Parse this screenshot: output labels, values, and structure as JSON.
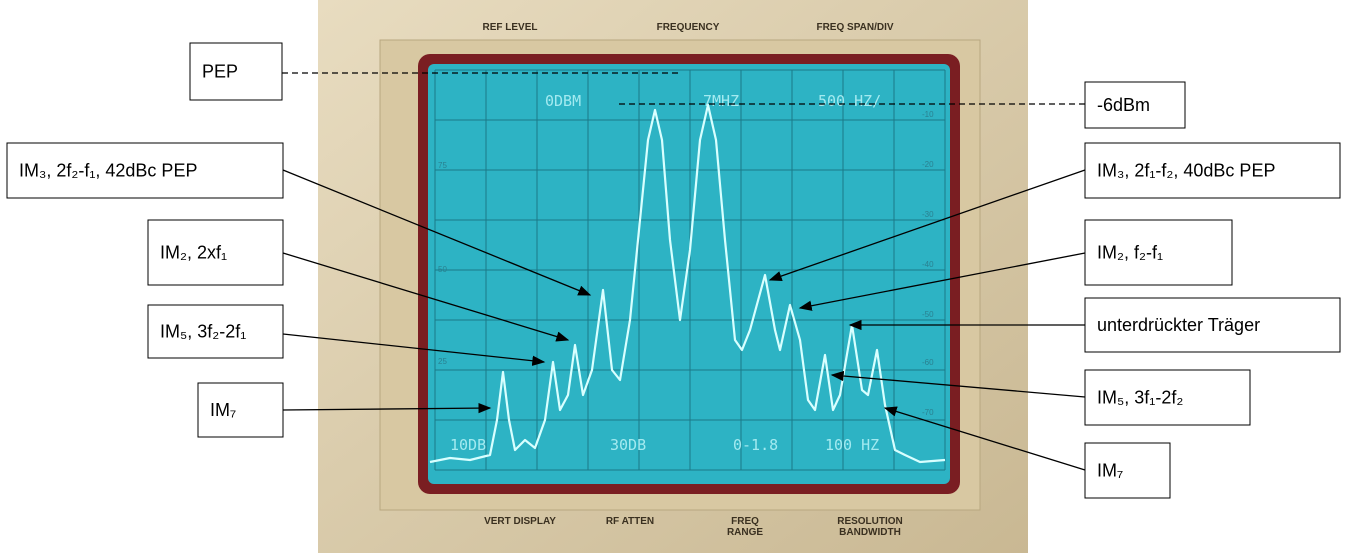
{
  "instrument": {
    "top_labels": [
      "REF LEVEL",
      "FREQUENCY",
      "FREQ SPAN/DIV"
    ],
    "bottom_labels": [
      [
        "VERT DISPLAY"
      ],
      [
        "RF ATTEN"
      ],
      [
        "FREQ",
        "RANGE"
      ],
      [
        "RESOLUTION",
        "BANDWIDTH"
      ]
    ],
    "screen_text": [
      "0DBM",
      "7MHZ",
      "500 HZ/",
      "10DB",
      "30DB",
      "0-1.8",
      "100 HZ"
    ],
    "left_scale": [
      "75",
      "50",
      "25"
    ],
    "right_scale": [
      "-10",
      "-20",
      "-30",
      "-40",
      "-50",
      "-60",
      "-70"
    ]
  },
  "annotations": [
    {
      "label": "PEP"
    },
    {
      "label": "-6dBm"
    },
    {
      "label": "IM₃, 2f₂-f₁, 42dBc PEP"
    },
    {
      "label": "IM₂, 2xf₁"
    },
    {
      "label": "IM₅, 3f₂-2f₁"
    },
    {
      "label": "IM₇"
    },
    {
      "label": "IM₃, 2f₁-f₂, 40dBc PEP"
    },
    {
      "label": "IM₂, f₂-f₁"
    },
    {
      "label": "unterdrückter Träger"
    },
    {
      "label": "IM₅, 3f₁-2f₂"
    },
    {
      "label": "IM₇"
    }
  ]
}
